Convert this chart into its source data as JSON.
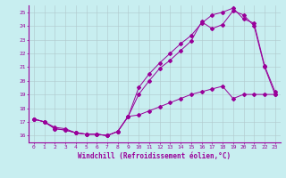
{
  "xlabel": "Windchill (Refroidissement éolien,°C)",
  "bg_color": "#c8eef0",
  "grid_color": "#b0c8cc",
  "line_color": "#990099",
  "series1_x": [
    0,
    1,
    2,
    3,
    4,
    5,
    6,
    7,
    8,
    9,
    10,
    11,
    12,
    13,
    14,
    15,
    16,
    17,
    18,
    19,
    20,
    21,
    22,
    23
  ],
  "series1_y": [
    17.2,
    17.0,
    16.5,
    16.4,
    16.2,
    16.1,
    16.1,
    16.0,
    16.3,
    17.4,
    17.5,
    17.8,
    18.1,
    18.4,
    18.7,
    19.0,
    19.2,
    19.4,
    19.6,
    18.7,
    19.0,
    19.0,
    19.0,
    19.0
  ],
  "series2_x": [
    0,
    1,
    2,
    3,
    4,
    5,
    6,
    7,
    8,
    9,
    10,
    11,
    12,
    13,
    14,
    15,
    16,
    17,
    18,
    19,
    20,
    21,
    22,
    23
  ],
  "series2_y": [
    17.2,
    17.0,
    16.5,
    16.4,
    16.2,
    16.1,
    16.1,
    16.0,
    16.3,
    17.4,
    19.0,
    20.0,
    20.9,
    21.5,
    22.2,
    22.9,
    24.3,
    23.8,
    24.1,
    25.1,
    24.8,
    24.0,
    21.0,
    19.0
  ],
  "series3_x": [
    0,
    1,
    2,
    3,
    4,
    5,
    6,
    7,
    8,
    9,
    10,
    11,
    12,
    13,
    14,
    15,
    16,
    17,
    18,
    19,
    20,
    21,
    22,
    23
  ],
  "series3_y": [
    17.2,
    17.0,
    16.6,
    16.5,
    16.2,
    16.1,
    16.1,
    16.0,
    16.3,
    17.4,
    19.5,
    20.5,
    21.3,
    22.0,
    22.7,
    23.3,
    24.2,
    24.8,
    25.0,
    25.3,
    24.5,
    24.2,
    21.1,
    19.2
  ],
  "xlim": [
    -0.5,
    23.5
  ],
  "ylim": [
    15.5,
    25.5
  ],
  "yticks": [
    16,
    17,
    18,
    19,
    20,
    21,
    22,
    23,
    24,
    25
  ],
  "xticks": [
    0,
    1,
    2,
    3,
    4,
    5,
    6,
    7,
    8,
    9,
    10,
    11,
    12,
    13,
    14,
    15,
    16,
    17,
    18,
    19,
    20,
    21,
    22,
    23
  ],
  "xlabel_fontsize": 5.5,
  "tick_fontsize": 4.5,
  "marker_size": 2.0,
  "linewidth": 0.7
}
